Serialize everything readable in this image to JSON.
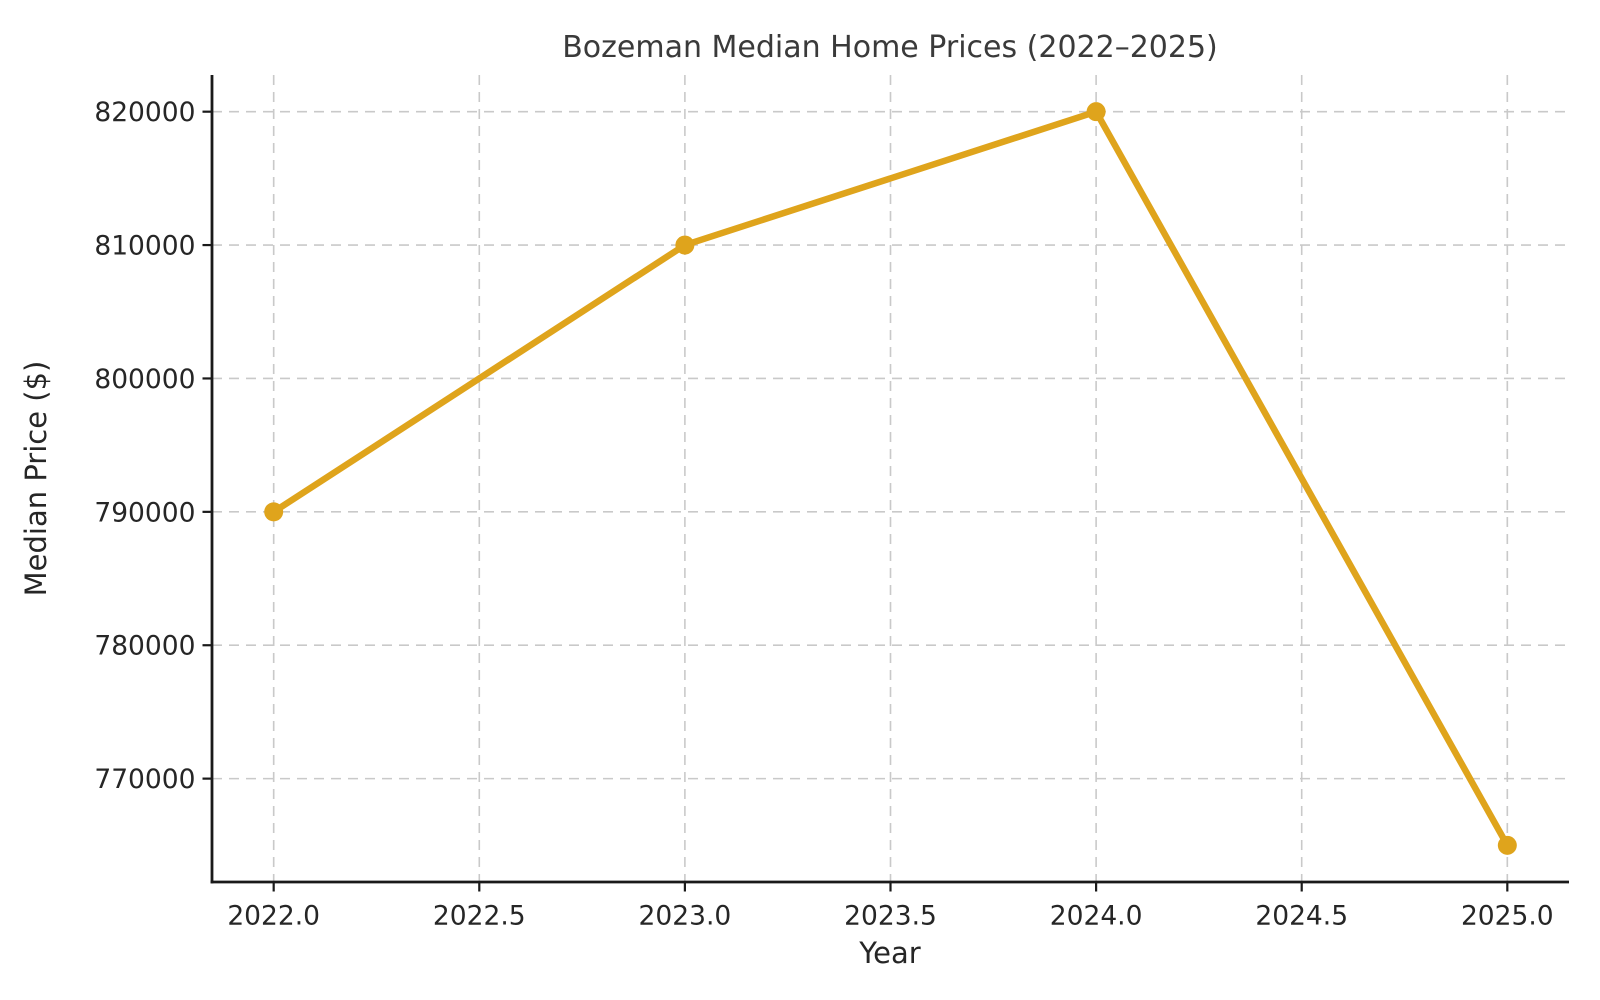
{
  "chart_data": {
    "type": "line",
    "title": "Bozeman Median Home Prices (2022–2025)",
    "xlabel": "Year",
    "ylabel": "Median Price ($)",
    "x": [
      2022,
      2023,
      2024,
      2025
    ],
    "y": [
      790000,
      810000,
      820000,
      765000
    ],
    "series": [
      {
        "name": "Median Price",
        "x": [
          2022,
          2023,
          2024,
          2025
        ],
        "values": [
          790000,
          810000,
          820000,
          765000
        ]
      }
    ],
    "xlim": [
      2021.85,
      2025.15
    ],
    "ylim": [
      762250,
      822750
    ],
    "xticks": [
      2022.0,
      2022.5,
      2023.0,
      2023.5,
      2024.0,
      2024.5,
      2025.0
    ],
    "xtick_labels": [
      "2022.0",
      "2022.5",
      "2023.0",
      "2023.5",
      "2024.0",
      "2024.5",
      "2025.0"
    ],
    "yticks": [
      770000,
      780000,
      790000,
      800000,
      810000,
      820000
    ],
    "ytick_labels": [
      "770000",
      "780000",
      "790000",
      "800000",
      "810000",
      "820000"
    ],
    "grid": true,
    "grid_style": "dashed",
    "legend_position": "none",
    "colors": {
      "line": "#DFA41C",
      "marker": "#DFA41C",
      "grid": "#c9c9c9",
      "spine": "#1a1a1a",
      "text": "#262626",
      "background": "#ffffff"
    },
    "marker": "circle"
  }
}
